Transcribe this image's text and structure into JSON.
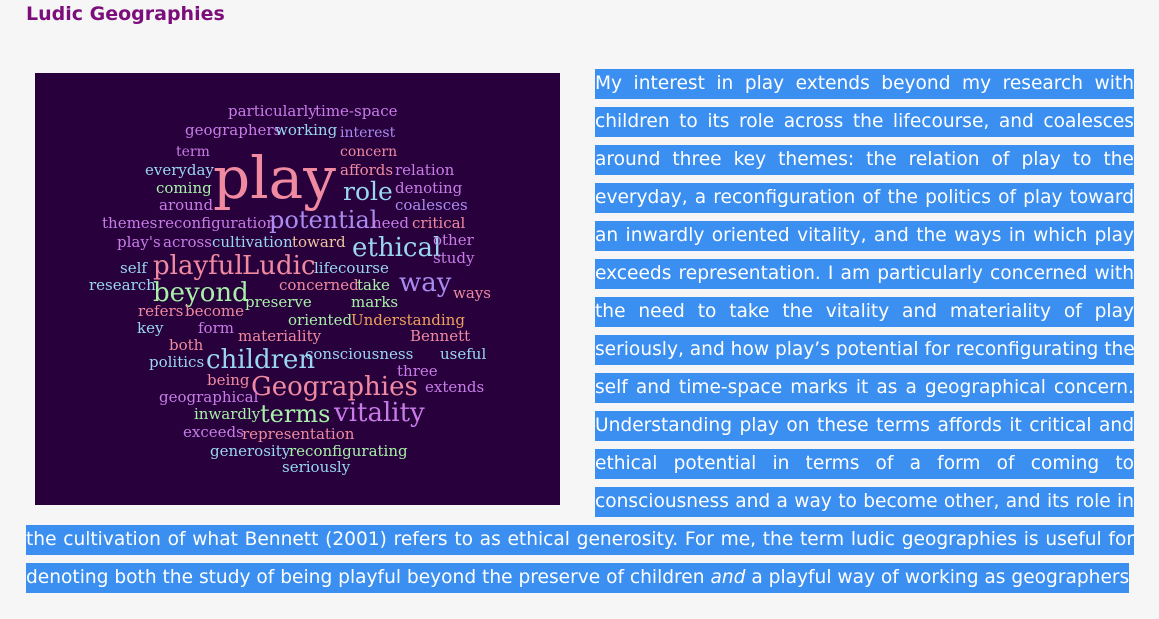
{
  "title": "Ludic Geographies",
  "word_cloud": {
    "words": [
      {
        "text": "particularly",
        "color": "#c97ce8"
      },
      {
        "text": "time-space",
        "color": "#c97ce8"
      },
      {
        "text": "geographers",
        "color": "#c97ce8"
      },
      {
        "text": "working",
        "color": "#9ad6f0"
      },
      {
        "text": "interest",
        "color": "#a98cf0"
      },
      {
        "text": "term",
        "color": "#c97ce8"
      },
      {
        "text": "concern",
        "color": "#f08aa0"
      },
      {
        "text": "everyday",
        "color": "#9ad6f0"
      },
      {
        "text": "play",
        "color": "#f08aa0"
      },
      {
        "text": "affords",
        "color": "#f08aa0"
      },
      {
        "text": "relation",
        "color": "#c97ce8"
      },
      {
        "text": "coming",
        "color": "#a8f0a8"
      },
      {
        "text": "role",
        "color": "#9ad6f0"
      },
      {
        "text": "denoting",
        "color": "#c97ce8"
      },
      {
        "text": "around",
        "color": "#c97ce8"
      },
      {
        "text": "coalesces",
        "color": "#a98cf0"
      },
      {
        "text": "themes",
        "color": "#c97ce8"
      },
      {
        "text": "reconfiguration",
        "color": "#c97ce8"
      },
      {
        "text": "potential",
        "color": "#a98cf0"
      },
      {
        "text": "need",
        "color": "#c97ce8"
      },
      {
        "text": "critical",
        "color": "#f08aa0"
      },
      {
        "text": "play's",
        "color": "#c97ce8"
      },
      {
        "text": "across",
        "color": "#c97ce8"
      },
      {
        "text": "cultivation",
        "color": "#9ad6f0"
      },
      {
        "text": "toward",
        "color": "#f0c4a0"
      },
      {
        "text": "ethical",
        "color": "#9ad6f0"
      },
      {
        "text": "other",
        "color": "#c97ce8"
      },
      {
        "text": "self",
        "color": "#9ad6f0"
      },
      {
        "text": "playful",
        "color": "#f08aa0"
      },
      {
        "text": "Ludic",
        "color": "#f08aa0"
      },
      {
        "text": "lifecourse",
        "color": "#9ad6f0"
      },
      {
        "text": "study",
        "color": "#c97ce8"
      },
      {
        "text": "research",
        "color": "#9ad6f0"
      },
      {
        "text": "beyond",
        "color": "#a8f0a8"
      },
      {
        "text": "concerned",
        "color": "#f08aa0"
      },
      {
        "text": "take",
        "color": "#a8f0a8"
      },
      {
        "text": "way",
        "color": "#a98cf0"
      },
      {
        "text": "ways",
        "color": "#f08aa0"
      },
      {
        "text": "refers",
        "color": "#f08aa0"
      },
      {
        "text": "become",
        "color": "#f08aa0"
      },
      {
        "text": "preserve",
        "color": "#a8f0a8"
      },
      {
        "text": "marks",
        "color": "#a8f0a8"
      },
      {
        "text": "key",
        "color": "#9ad6f0"
      },
      {
        "text": "form",
        "color": "#c97ce8"
      },
      {
        "text": "oriented",
        "color": "#a8f0a8"
      },
      {
        "text": "Understanding",
        "color": "#f0a060"
      },
      {
        "text": "both",
        "color": "#f08aa0"
      },
      {
        "text": "materiality",
        "color": "#f08aa0"
      },
      {
        "text": "Bennett",
        "color": "#f08aa0"
      },
      {
        "text": "politics",
        "color": "#9ad6f0"
      },
      {
        "text": "children",
        "color": "#9ad6f0"
      },
      {
        "text": "consciousness",
        "color": "#9ad6f0"
      },
      {
        "text": "useful",
        "color": "#9ad6f0"
      },
      {
        "text": "three",
        "color": "#c97ce8"
      },
      {
        "text": "being",
        "color": "#f08aa0"
      },
      {
        "text": "Geographies",
        "color": "#f08aa0"
      },
      {
        "text": "extends",
        "color": "#c97ce8"
      },
      {
        "text": "geographical",
        "color": "#c97ce8"
      },
      {
        "text": "inwardly",
        "color": "#a8f0a8"
      },
      {
        "text": "terms",
        "color": "#a8f0a8"
      },
      {
        "text": "vitality",
        "color": "#c97ce8"
      },
      {
        "text": "exceeds",
        "color": "#c97ce8"
      },
      {
        "text": "representation",
        "color": "#f08aa0"
      },
      {
        "text": "generosity",
        "color": "#9ad6f0"
      },
      {
        "text": "reconfigurating",
        "color": "#a8f0a8"
      },
      {
        "text": "seriously",
        "color": "#9ad6f0"
      }
    ]
  },
  "paragraph": {
    "lines": [
      "My interest in play extends beyond my research with",
      "children to its role across the lifecourse, and coalesces",
      "around three key themes: the relation of play to the",
      "everyday, a reconfiguration of the politics of play toward",
      "an inwardly oriented vitality, and the ways in which play",
      "exceeds representation. I am particularly concerned with",
      "the need to take the vitality and materiality of play",
      "seriously, and how play’s potential for reconfigurating the",
      "self and time-space marks it as a geographical concern.",
      "Understanding play on these terms affords it critical and",
      "ethical potential in terms of a form of coming to",
      "consciousness and a way to become other, and its role in",
      "the cultivation of what Bennett (2001) refers to as ethical generosity. For me, the term ludic geographies is useful for"
    ],
    "last_line": {
      "before": "denoting both the study of being playful beyond the preserve of children ",
      "emphasis": "and",
      "after": " a playful way of working as geographers."
    }
  },
  "colors": {
    "background": "#f6f6f6",
    "title": "#7b0e7b",
    "selection": "#3b8ff0",
    "cloud_background": "#27003c"
  }
}
